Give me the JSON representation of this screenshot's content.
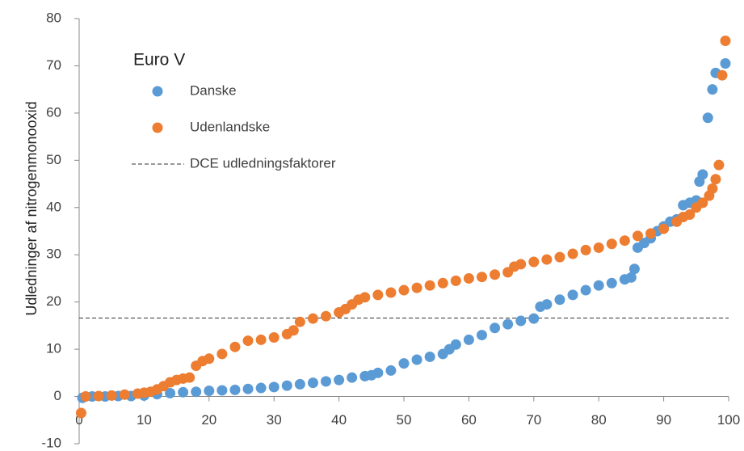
{
  "chart_data": {
    "type": "scatter",
    "y_label": "Udledninger af nitrogenmonooxid",
    "legend_title": "Euro V",
    "xlim": [
      0,
      100
    ],
    "xticks": [
      0,
      10,
      20,
      30,
      40,
      50,
      60,
      70,
      80,
      90,
      100
    ],
    "ylim": [
      -10,
      80
    ],
    "yticks": [
      -10,
      0,
      10,
      20,
      30,
      40,
      50,
      60,
      70,
      80
    ],
    "grid": false,
    "legend_position": "upper left",
    "reference_line": {
      "name": "DCE udledningsfaktorer",
      "value": 16.6,
      "color": "#333333"
    },
    "series": [
      {
        "name": "Danske",
        "color": "#5b9bd5",
        "x": [
          0.5,
          2,
          4,
          6,
          8,
          10,
          12,
          14,
          16,
          18,
          20,
          22,
          24,
          26,
          28,
          30,
          32,
          34,
          36,
          38,
          40,
          42,
          44,
          45,
          46,
          48,
          50,
          52,
          54,
          56,
          57,
          58,
          60,
          62,
          64,
          66,
          68,
          70,
          71,
          72,
          74,
          76,
          78,
          80,
          82,
          84,
          85,
          85.5,
          86,
          87,
          88,
          89,
          90,
          91,
          92,
          93,
          94,
          95,
          95.5,
          96,
          96.8,
          97.5,
          98,
          99.5
        ],
        "values": [
          -0.3,
          0,
          0,
          0.1,
          0.1,
          0.2,
          0.5,
          0.7,
          0.9,
          1.0,
          1.2,
          1.3,
          1.4,
          1.6,
          1.8,
          2.0,
          2.3,
          2.6,
          2.9,
          3.2,
          3.5,
          4.0,
          4.3,
          4.5,
          5.0,
          5.5,
          7.0,
          7.8,
          8.4,
          9.0,
          10.0,
          11.0,
          12.0,
          13.0,
          14.5,
          15.3,
          16.0,
          16.5,
          19.0,
          19.5,
          20.5,
          21.5,
          22.5,
          23.5,
          24.0,
          24.8,
          25.2,
          27.0,
          31.5,
          32.5,
          33.5,
          35.0,
          36.0,
          37.0,
          37.5,
          40.5,
          41.0,
          41.5,
          45.5,
          47.0,
          59.0,
          65.0,
          68.5,
          70.5
        ]
      },
      {
        "name": "Udenlandske",
        "color": "#ed7d31",
        "x": [
          0.3,
          1,
          3,
          5,
          7,
          9,
          10,
          11,
          12,
          13,
          14,
          15,
          16,
          17,
          18,
          19,
          20,
          22,
          24,
          26,
          28,
          30,
          32,
          33,
          34,
          36,
          38,
          40,
          41,
          42,
          43,
          44,
          46,
          48,
          50,
          52,
          54,
          56,
          58,
          60,
          62,
          64,
          66,
          67,
          68,
          70,
          72,
          74,
          76,
          78,
          80,
          82,
          84,
          86,
          88,
          90,
          92,
          93,
          94,
          95,
          96,
          97,
          97.5,
          98,
          98.5,
          99,
          99.5
        ],
        "values": [
          -3.5,
          0,
          0.1,
          0.2,
          0.4,
          0.6,
          0.8,
          1.0,
          1.5,
          2.2,
          3.0,
          3.5,
          3.8,
          4.0,
          6.5,
          7.5,
          8.0,
          9.0,
          10.5,
          11.8,
          12.0,
          12.5,
          13.2,
          14.0,
          15.8,
          16.5,
          17.0,
          17.8,
          18.5,
          19.5,
          20.5,
          21.0,
          21.5,
          22.0,
          22.5,
          23.0,
          23.5,
          24.0,
          24.5,
          25.0,
          25.3,
          25.8,
          26.3,
          27.5,
          28.0,
          28.5,
          29.0,
          29.5,
          30.2,
          31.0,
          31.5,
          32.3,
          33.0,
          34.0,
          34.5,
          35.5,
          37.0,
          38.0,
          38.5,
          40.0,
          41.0,
          42.5,
          44.0,
          46.0,
          49.0,
          68.0,
          75.3
        ]
      }
    ]
  }
}
